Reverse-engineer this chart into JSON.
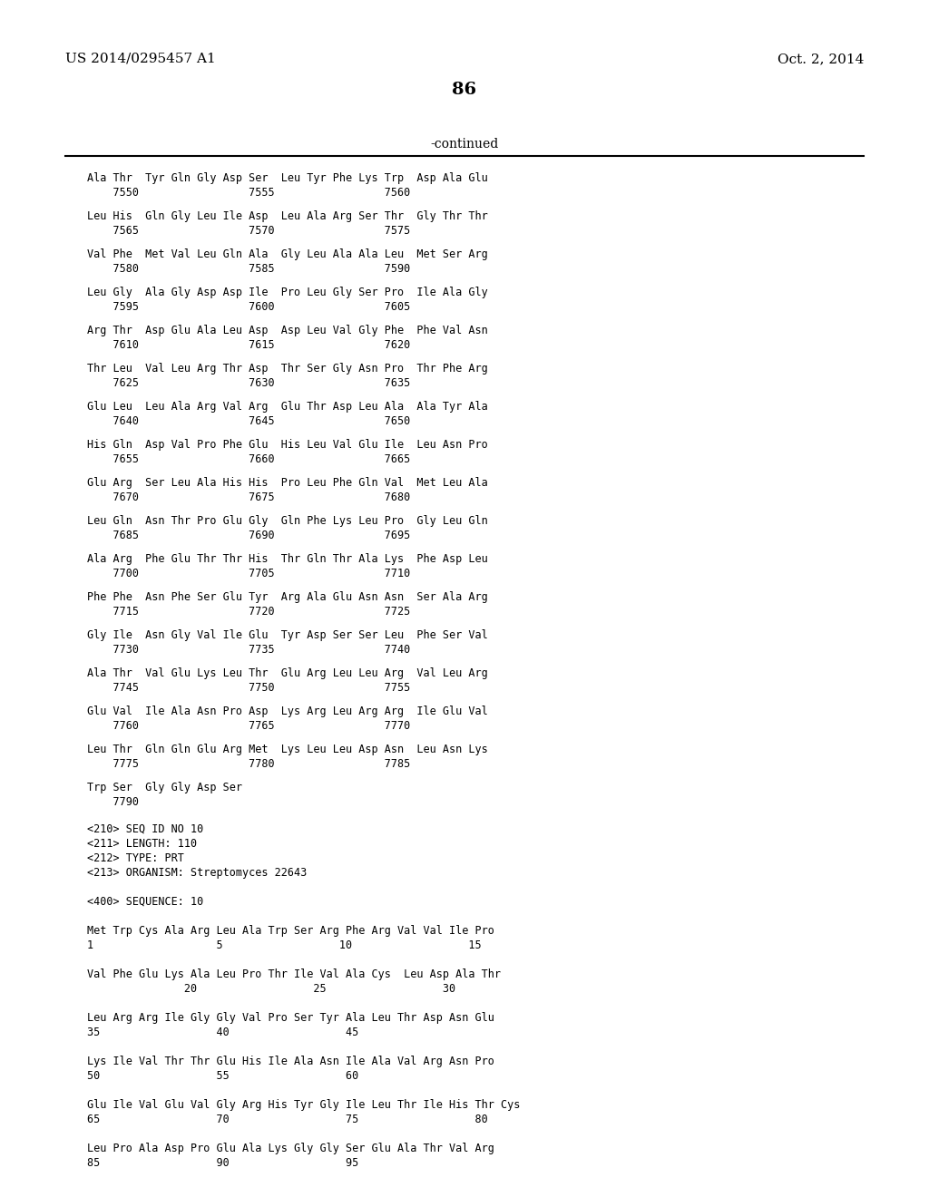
{
  "header_left": "US 2014/0295457 A1",
  "header_right": "Oct. 2, 2014",
  "page_number": "86",
  "continued_label": "-continued",
  "background_color": "#ffffff",
  "text_color": "#000000",
  "body_fontsize": 8.5,
  "header_fontsize": 11,
  "page_num_fontsize": 14,
  "sequence_blocks": [
    [
      "Ala Thr  Tyr Gln Gly Asp Ser  Leu Tyr Phe Lys Trp  Asp Ala Glu",
      "    7550                 7555                 7560"
    ],
    [
      "Leu His  Gln Gly Leu Ile Asp  Leu Ala Arg Ser Thr  Gly Thr Thr",
      "    7565                 7570                 7575"
    ],
    [
      "Val Phe  Met Val Leu Gln Ala  Gly Leu Ala Ala Leu  Met Ser Arg",
      "    7580                 7585                 7590"
    ],
    [
      "Leu Gly  Ala Gly Asp Asp Ile  Pro Leu Gly Ser Pro  Ile Ala Gly",
      "    7595                 7600                 7605"
    ],
    [
      "Arg Thr  Asp Glu Ala Leu Asp  Asp Leu Val Gly Phe  Phe Val Asn",
      "    7610                 7615                 7620"
    ],
    [
      "Thr Leu  Val Leu Arg Thr Asp  Thr Ser Gly Asn Pro  Thr Phe Arg",
      "    7625                 7630                 7635"
    ],
    [
      "Glu Leu  Leu Ala Arg Val Arg  Glu Thr Asp Leu Ala  Ala Tyr Ala",
      "    7640                 7645                 7650"
    ],
    [
      "His Gln  Asp Val Pro Phe Glu  His Leu Val Glu Ile  Leu Asn Pro",
      "    7655                 7660                 7665"
    ],
    [
      "Glu Arg  Ser Leu Ala His His  Pro Leu Phe Gln Val  Met Leu Ala",
      "    7670                 7675                 7680"
    ],
    [
      "Leu Gln  Asn Thr Pro Glu Gly  Gln Phe Lys Leu Pro  Gly Leu Gln",
      "    7685                 7690                 7695"
    ],
    [
      "Ala Arg  Phe Glu Thr Thr His  Thr Gln Thr Ala Lys  Phe Asp Leu",
      "    7700                 7705                 7710"
    ],
    [
      "Phe Phe  Asn Phe Ser Glu Tyr  Arg Ala Glu Asn Asn  Ser Ala Arg",
      "    7715                 7720                 7725"
    ],
    [
      "Gly Ile  Asn Gly Val Ile Glu  Tyr Asp Ser Ser Leu  Phe Ser Val",
      "    7730                 7735                 7740"
    ],
    [
      "Ala Thr  Val Glu Lys Leu Thr  Glu Arg Leu Leu Arg  Val Leu Arg",
      "    7745                 7750                 7755"
    ],
    [
      "Glu Val  Ile Ala Asn Pro Asp  Lys Arg Leu Arg Arg  Ile Glu Val",
      "    7760                 7765                 7770"
    ],
    [
      "Leu Thr  Gln Gln Glu Arg Met  Lys Leu Leu Asp Asn  Leu Asn Lys",
      "    7775                 7780                 7785"
    ],
    [
      "Trp Ser  Gly Gly Asp Ser",
      "    7790"
    ]
  ],
  "meta_lines": [
    "<210> SEQ ID NO 10",
    "<211> LENGTH: 110",
    "<212> TYPE: PRT",
    "<213> ORGANISM: Streptomyces 22643",
    "",
    "<400> SEQUENCE: 10",
    "",
    "Met Trp Cys Ala Arg Leu Ala Trp Ser Arg Phe Arg Val Val Ile Pro",
    "1                   5                  10                  15",
    "",
    "Val Phe Glu Lys Ala Leu Pro Thr Ile Val Ala Cys  Leu Asp Ala Thr",
    "               20                  25                  30",
    "",
    "Leu Arg Arg Ile Gly Gly Val Pro Ser Tyr Ala Leu Thr Asp Asn Glu",
    "35                  40                  45",
    "",
    "Lys Ile Val Thr Thr Glu His Ile Ala Asn Ile Ala Val Arg Asn Pro",
    "50                  55                  60",
    "",
    "Glu Ile Val Glu Val Gly Arg His Tyr Gly Ile Leu Thr Ile His Thr Cys",
    "65                  70                  75                  80",
    "",
    "Leu Pro Ala Asp Pro Glu Ala Lys Gly Gly Ser Glu Ala Thr Val Arg",
    "85                  90                  95"
  ]
}
